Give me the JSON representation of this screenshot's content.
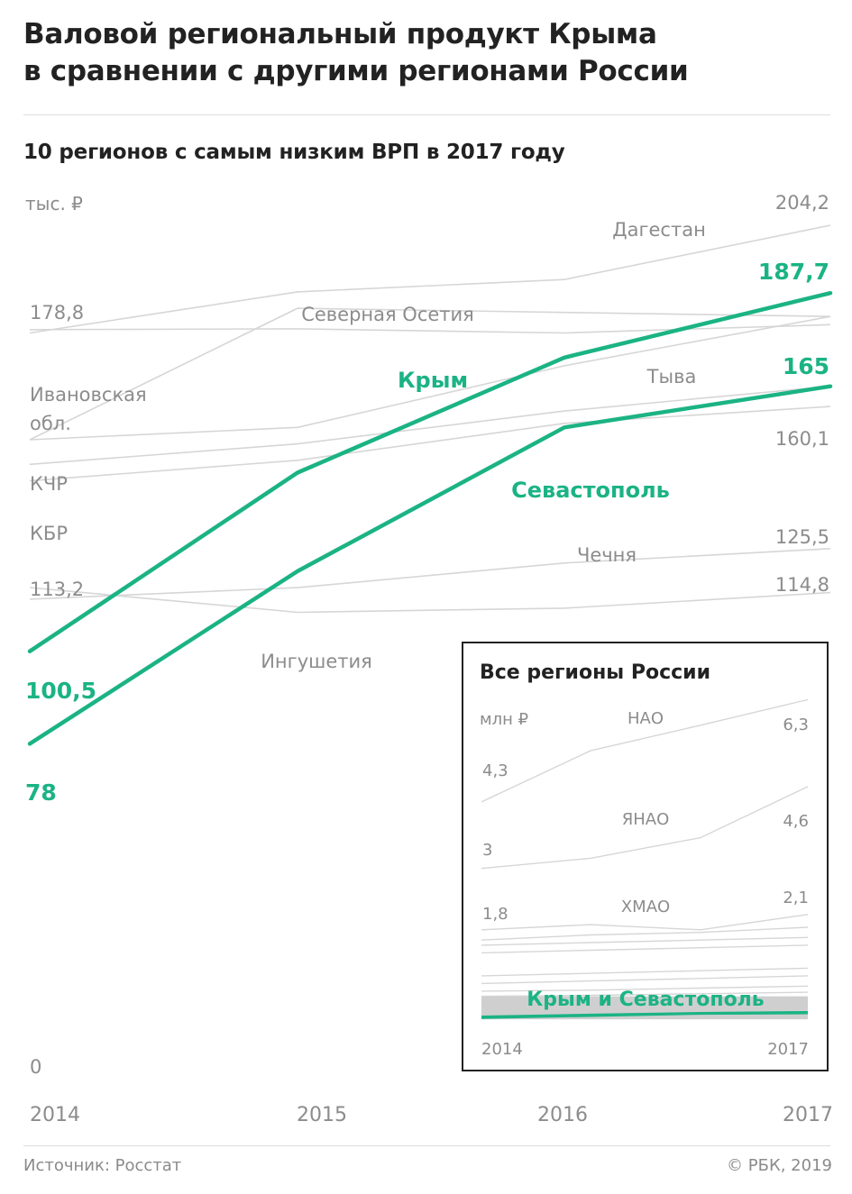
{
  "title_line1": "Валовой региональный продукт Крыма",
  "title_line2": "в сравнении с другими регионами России",
  "subtitle": "10 регионов с самым низким ВРП в 2017 году",
  "source": "Источник: Росстат",
  "copyright": "© РБК, 2019",
  "colors": {
    "highlight": "#1bb384",
    "context_line": "#d6d6d6",
    "label_gray": "#8c8c8c",
    "text": "#222222"
  },
  "chart_data": [
    {
      "type": "line",
      "title": "10 регионов с самым низким ВРП в 2017 году",
      "unit": "тыс. ₽",
      "x": [
        "2014",
        "2015",
        "2016",
        "2017"
      ],
      "y_zero_label": "0",
      "ylim": [
        0,
        204.2
      ],
      "grid": false,
      "highlight_series": [
        {
          "name": "Крым",
          "values": [
            100.5,
            144,
            172,
            187.7
          ],
          "start_label": "100,5",
          "end_label": "187,7"
        },
        {
          "name": "Севастополь",
          "values": [
            78,
            120,
            155,
            165
          ],
          "start_label": "78",
          "end_label": "165"
        }
      ],
      "context_series": [
        {
          "name": "Дагестан",
          "values": [
            178,
            188,
            191,
            204.2
          ],
          "end_label": "204,2"
        },
        {
          "name": "Северная Осетия",
          "values": [
            178.8,
            179,
            178,
            180
          ],
          "start_label": "178,8"
        },
        {
          "name": "Тыва",
          "values": [
            152,
            184,
            183,
            182
          ]
        },
        {
          "name": "Ивановская обл.",
          "values": [
            152,
            155,
            170,
            182
          ]
        },
        {
          "name": "КЧР",
          "values": [
            146,
            151,
            159,
            165
          ]
        },
        {
          "name": "КБР",
          "values": [
            142,
            147,
            156,
            160.1
          ],
          "end_label": "160,1"
        },
        {
          "name": "Чечня",
          "values": [
            113.2,
            116,
            122,
            125.5
          ],
          "start_label": "113,2",
          "end_label": "125,5"
        },
        {
          "name": "Ингушетия",
          "values": [
            116,
            110,
            111,
            114.8
          ],
          "end_label": "114,8"
        }
      ],
      "annotations": [
        {
          "text": "Дагестан",
          "series": "Дагестан"
        },
        {
          "text": "Северная Осетия",
          "series": "Северная Осетия"
        },
        {
          "text": "Тыва",
          "series": "Тыва"
        },
        {
          "text": "Ивановская",
          "series": "Ивановская обл."
        },
        {
          "text": "обл.",
          "series": "Ивановская обл."
        },
        {
          "text": "КЧР",
          "series": "КЧР"
        },
        {
          "text": "КБР",
          "series": "КБР"
        },
        {
          "text": "Чечня",
          "series": "Чечня"
        },
        {
          "text": "Ингушетия",
          "series": "Ингушетия"
        }
      ]
    },
    {
      "type": "line",
      "title": "Все регионы России",
      "unit": "млн ₽",
      "x": [
        "2014",
        "2015",
        "2016",
        "2017"
      ],
      "x_labels_shown": [
        "2014",
        "2017"
      ],
      "ylim": [
        0,
        6.8
      ],
      "grid": false,
      "highlight_label": "Крым и Севастополь",
      "highlight_series": [
        {
          "name": "Крым",
          "values": [
            0.1,
            0.14,
            0.17,
            0.19
          ]
        },
        {
          "name": "Севастополь",
          "values": [
            0.08,
            0.12,
            0.16,
            0.17
          ]
        }
      ],
      "context_series": [
        {
          "name": "НАО",
          "values": [
            4.3,
            5.3,
            5.8,
            6.3
          ],
          "start_label": "4,3",
          "end_label": "6,3"
        },
        {
          "name": "ЯНАО",
          "values": [
            3.0,
            3.2,
            3.6,
            4.6
          ],
          "start_label": "3",
          "end_label": "4,6"
        },
        {
          "name": "ХМАО",
          "values": [
            1.8,
            1.9,
            1.8,
            2.1
          ],
          "start_label": "1,8",
          "end_label": "2,1"
        },
        {
          "name": "",
          "values": [
            1.6,
            1.7,
            1.75,
            1.85
          ]
        },
        {
          "name": "",
          "values": [
            1.5,
            1.55,
            1.6,
            1.65
          ]
        },
        {
          "name": "",
          "values": [
            1.35,
            1.4,
            1.45,
            1.5
          ]
        },
        {
          "name": "",
          "values": [
            0.9,
            0.95,
            1.0,
            1.05
          ]
        },
        {
          "name": "",
          "values": [
            0.75,
            0.8,
            0.85,
            0.9
          ]
        },
        {
          "name": "",
          "values": [
            0.6,
            0.62,
            0.66,
            0.7
          ]
        },
        {
          "name": "",
          "values": [
            0.5,
            0.52,
            0.55,
            0.58
          ]
        }
      ],
      "band": {
        "from": 0.05,
        "to": 0.5
      }
    }
  ]
}
